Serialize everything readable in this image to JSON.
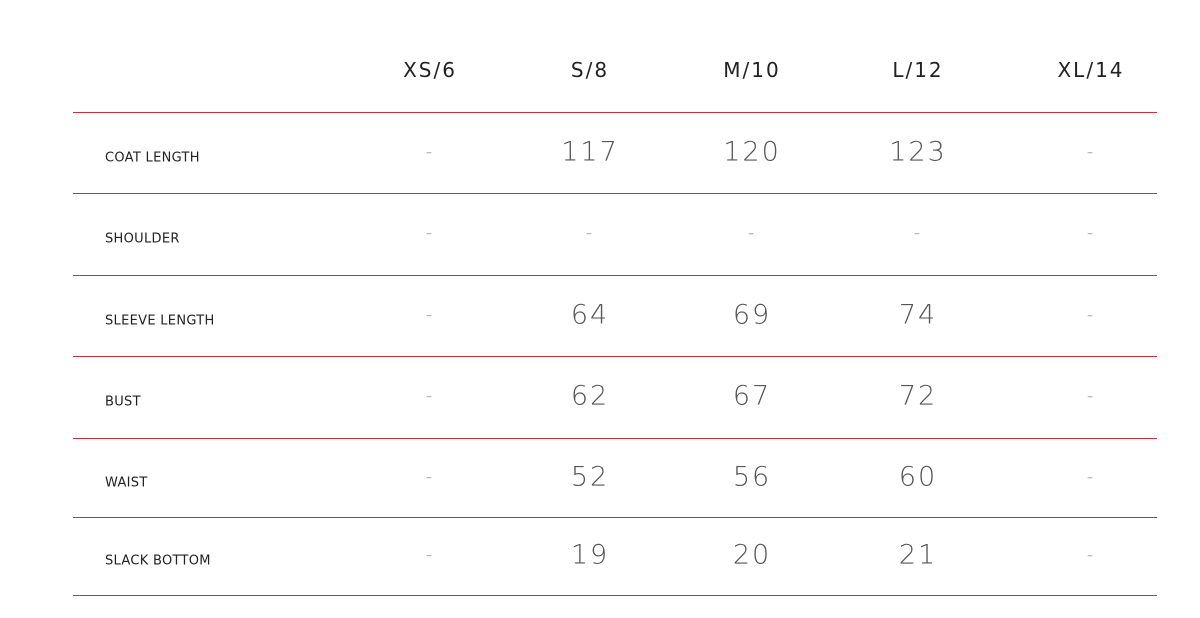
{
  "table": {
    "columns": [
      "XS/6",
      "S/8",
      "M/10",
      "L/12",
      "XL/14"
    ],
    "rows": [
      {
        "label": "COAT LENGTH",
        "values": [
          "-",
          "117",
          "120",
          "123",
          "-"
        ]
      },
      {
        "label": "SHOULDER",
        "values": [
          "-",
          "-",
          "-",
          "-",
          "-"
        ]
      },
      {
        "label": "SLEEVE LENGTH",
        "values": [
          "-",
          "64",
          "69",
          "74",
          "-"
        ]
      },
      {
        "label": "BUST",
        "values": [
          "-",
          "62",
          "67",
          "72",
          "-"
        ]
      },
      {
        "label": "WAIST",
        "values": [
          "-",
          "52",
          "56",
          "60",
          "-"
        ]
      },
      {
        "label": "SLACK BOTTOM",
        "values": [
          "-",
          "19",
          "20",
          "21",
          "-"
        ]
      }
    ],
    "divider_color": "#c8323a"
  }
}
